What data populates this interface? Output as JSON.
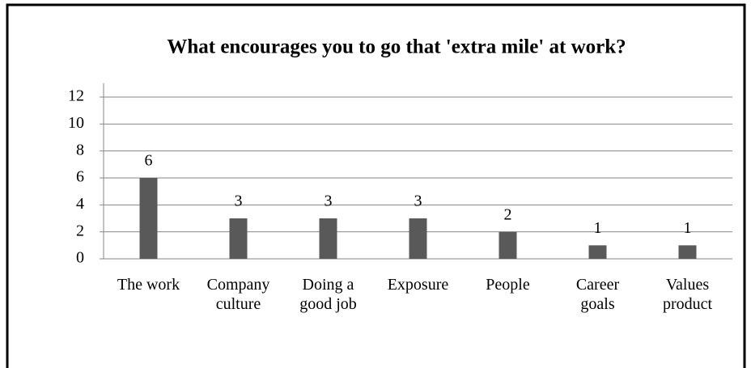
{
  "chart_data": {
    "type": "bar",
    "title": "What encourages you to go that 'extra mile' at work?",
    "categories": [
      "The work",
      "Company culture",
      "Doing a good job",
      "Exposure",
      "People",
      "Career goals",
      "Values product"
    ],
    "values": [
      6,
      3,
      3,
      3,
      2,
      1,
      1
    ],
    "color": "#595959",
    "ylim": [
      0,
      12
    ],
    "yticks": [
      0,
      2,
      4,
      6,
      8,
      10,
      12
    ],
    "grid": true
  }
}
